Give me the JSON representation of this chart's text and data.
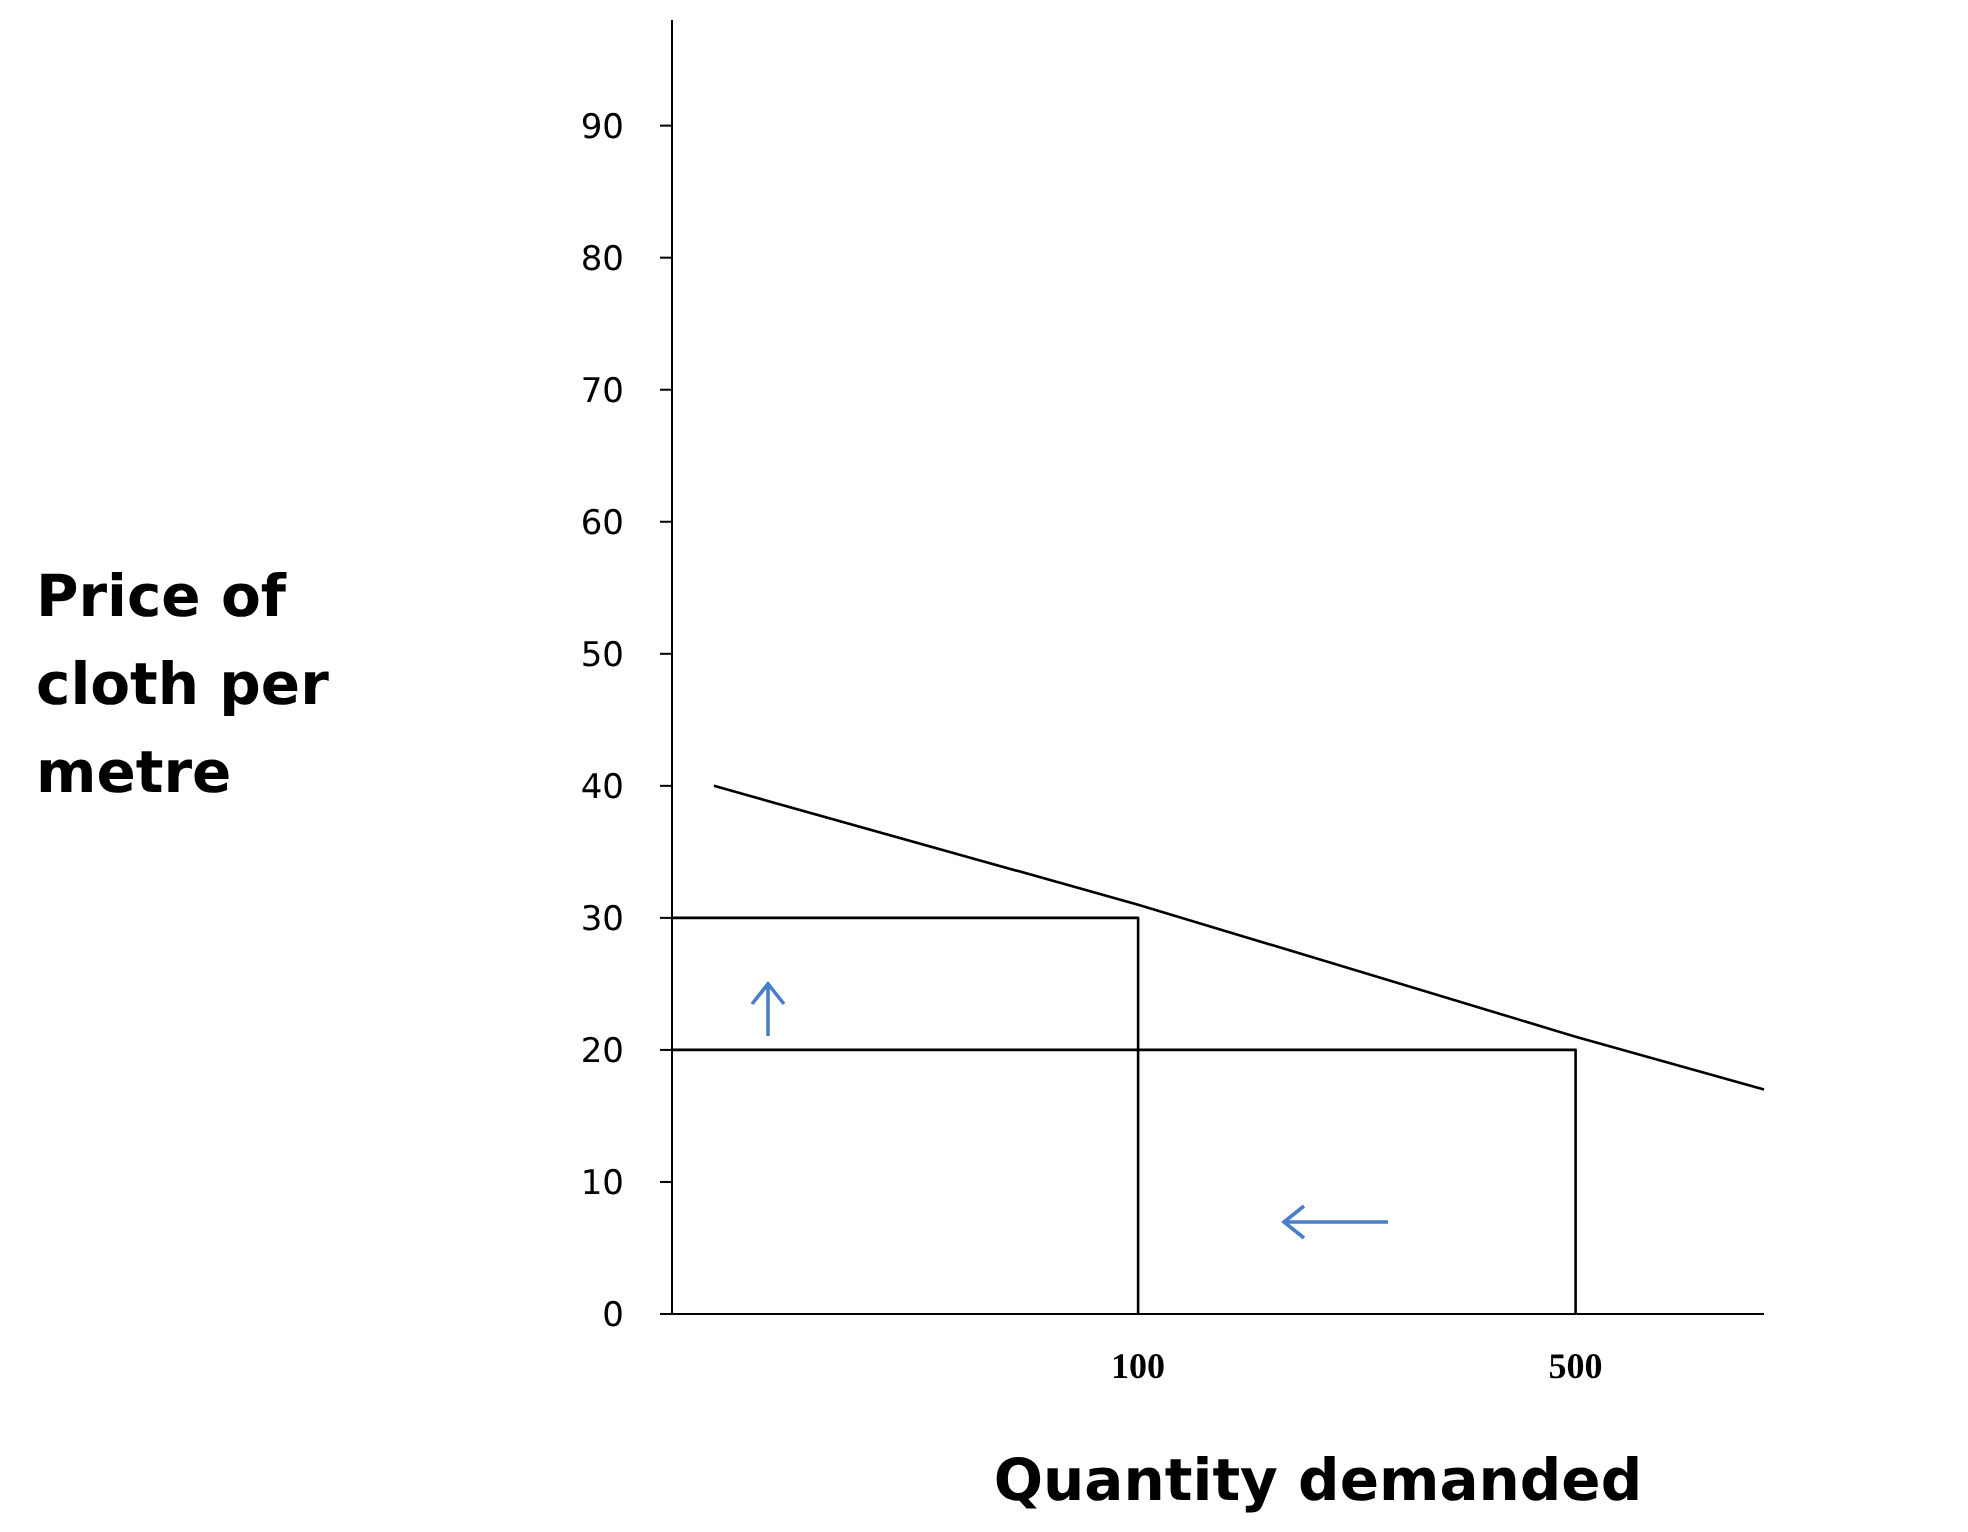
{
  "chart_data": {
    "type": "line",
    "xlabel": "Quantity demanded",
    "ylabel": "Price of cloth per metre",
    "log": "x",
    "xlim": [
      18,
      1000
    ],
    "xticks": [
      100,
      500
    ],
    "ylim": [
      0,
      98
    ],
    "yticks": [
      0,
      10,
      20,
      30,
      40,
      50,
      60,
      70,
      80,
      90
    ],
    "grid": false,
    "marker": "none",
    "line_style": "solid",
    "series": [
      {
        "color": "#000000",
        "x": [
          21,
          100,
          500,
          1000
        ],
        "values": [
          40,
          31,
          21,
          17
        ]
      },
      {
        "color": "#000000",
        "x": [
          18,
          100,
          100
        ],
        "values": [
          30,
          30,
          0
        ]
      },
      {
        "color": "#000000",
        "x": [
          18,
          500,
          500
        ],
        "values": [
          20,
          20,
          0
        ]
      }
    ]
  }
}
